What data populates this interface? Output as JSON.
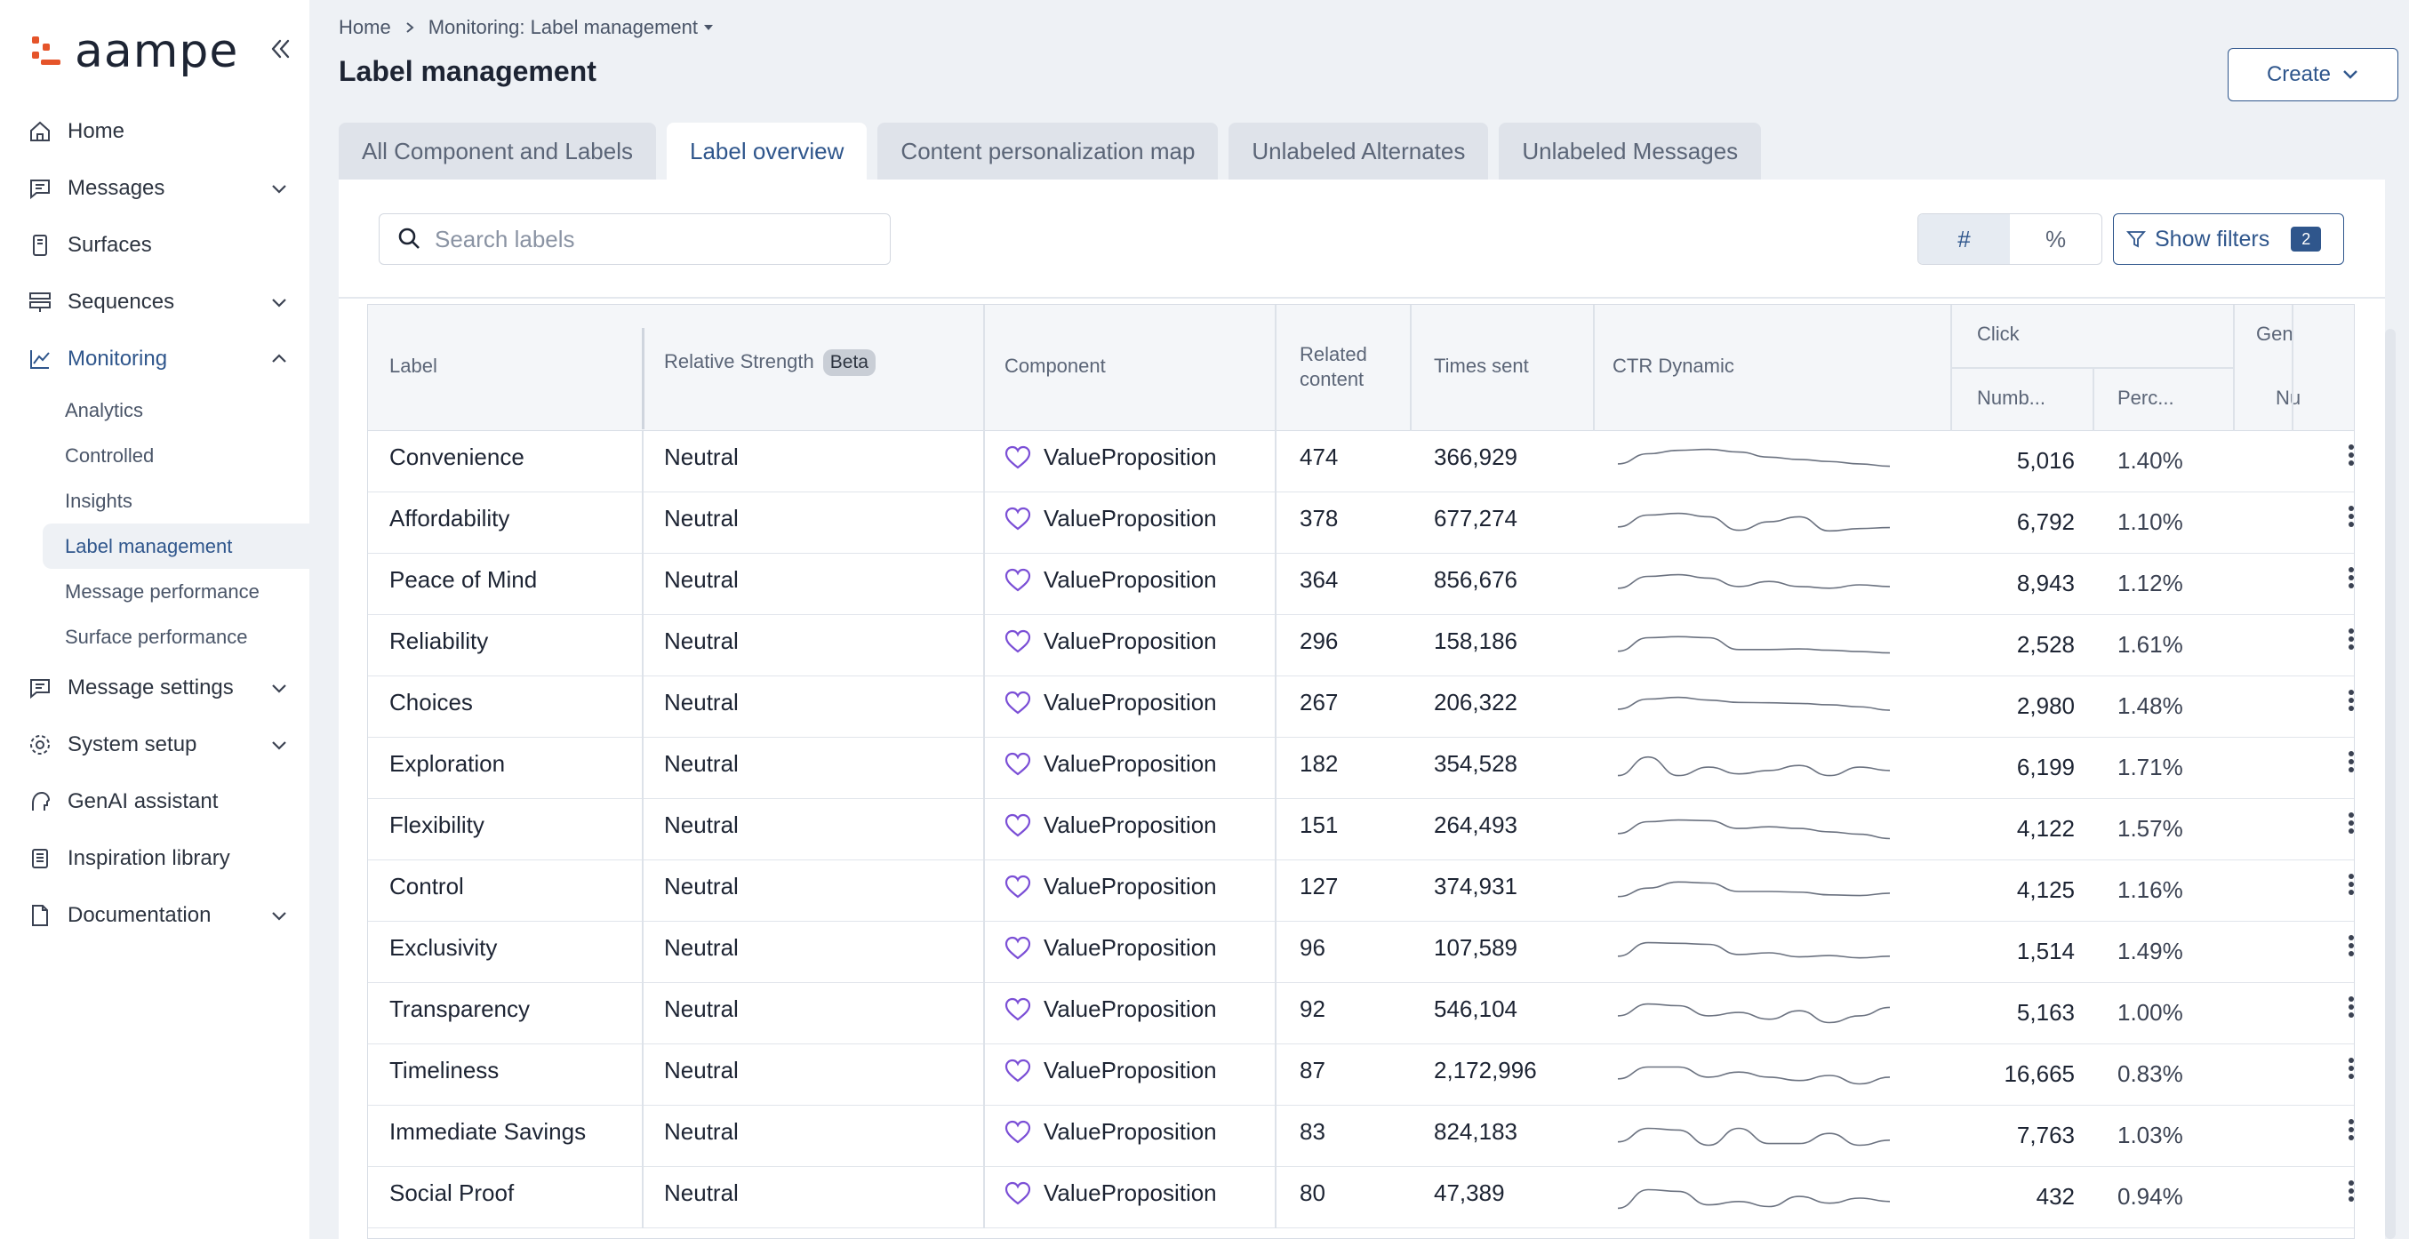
{
  "app": {
    "logo_text": "aampe"
  },
  "sidebar": {
    "items": [
      {
        "label": "Home",
        "icon": "home-icon"
      },
      {
        "label": "Messages",
        "icon": "message-icon",
        "chevron": "down"
      },
      {
        "label": "Surfaces",
        "icon": "surface-icon"
      },
      {
        "label": "Sequences",
        "icon": "sequence-icon",
        "chevron": "down"
      },
      {
        "label": "Monitoring",
        "icon": "chart-line-icon",
        "chevron": "up",
        "active": true
      }
    ],
    "monitoring_sub": [
      "Analytics",
      "Controlled",
      "Insights",
      "Label management",
      "Message performance",
      "Surface performance"
    ],
    "items_after": [
      {
        "label": "Message settings",
        "icon": "message-settings-icon",
        "chevron": "down"
      },
      {
        "label": "System setup",
        "icon": "gear-icon",
        "chevron": "down"
      },
      {
        "label": "GenAI assistant",
        "icon": "genai-icon"
      },
      {
        "label": "Inspiration library",
        "icon": "library-icon"
      },
      {
        "label": "Documentation",
        "icon": "document-icon",
        "chevron": "down"
      }
    ]
  },
  "breadcrumb": {
    "home": "Home",
    "current": "Monitoring: Label management"
  },
  "header": {
    "title": "Label management",
    "create_label": "Create"
  },
  "tabs": [
    "All Component and Labels",
    "Label overview",
    "Content personalization map",
    "Unlabeled Alternates",
    "Unlabeled Messages"
  ],
  "toolbar": {
    "search_placeholder": "Search labels",
    "toggle_count": "#",
    "toggle_percent": "%",
    "filters_label": "Show filters",
    "filters_count": "2"
  },
  "table": {
    "headers": {
      "label": "Label",
      "strength": "Relative Strength",
      "beta": "Beta",
      "component": "Component",
      "related_1": "Related",
      "related_2": "content",
      "times_sent": "Times sent",
      "ctr": "CTR Dynamic",
      "click_group": "Click",
      "click_number": "Numb...",
      "click_percent": "Perc...",
      "gen_group": "Gen",
      "gen_number": "Nu"
    },
    "rows": [
      {
        "label": "Convenience",
        "strength": "Neutral",
        "component": "ValueProposition",
        "related": "474",
        "sent": "366,929",
        "click_n": "5,016",
        "click_p": "1.40%",
        "spark": [
          0.55,
          0.25,
          0.15,
          0.12,
          0.2,
          0.35,
          0.42,
          0.48,
          0.55,
          0.62
        ]
      },
      {
        "label": "Affordability",
        "strength": "Neutral",
        "component": "ValueProposition",
        "related": "378",
        "sent": "677,274",
        "click_n": "6,792",
        "click_p": "1.10%",
        "spark": [
          0.6,
          0.25,
          0.2,
          0.3,
          0.7,
          0.45,
          0.3,
          0.72,
          0.65,
          0.62
        ]
      },
      {
        "label": "Peace of Mind",
        "strength": "Neutral",
        "component": "ValueProposition",
        "related": "364",
        "sent": "856,676",
        "click_n": "8,943",
        "click_p": "1.12%",
        "spark": [
          0.6,
          0.25,
          0.2,
          0.3,
          0.55,
          0.4,
          0.55,
          0.6,
          0.5,
          0.55
        ]
      },
      {
        "label": "Reliability",
        "strength": "Neutral",
        "component": "ValueProposition",
        "related": "296",
        "sent": "158,186",
        "click_n": "2,528",
        "click_p": "1.61%",
        "spark": [
          0.65,
          0.25,
          0.22,
          0.25,
          0.6,
          0.6,
          0.58,
          0.62,
          0.66,
          0.7
        ]
      },
      {
        "label": "Choices",
        "strength": "Neutral",
        "component": "ValueProposition",
        "related": "267",
        "sent": "206,322",
        "click_n": "2,980",
        "click_p": "1.48%",
        "spark": [
          0.55,
          0.25,
          0.2,
          0.28,
          0.35,
          0.36,
          0.38,
          0.42,
          0.48,
          0.58
        ]
      },
      {
        "label": "Exploration",
        "strength": "Neutral",
        "component": "ValueProposition",
        "related": "182",
        "sent": "354,528",
        "click_n": "6,199",
        "click_p": "1.71%",
        "spark": [
          0.7,
          0.15,
          0.7,
          0.45,
          0.65,
          0.55,
          0.4,
          0.7,
          0.45,
          0.55
        ]
      },
      {
        "label": "Flexibility",
        "strength": "Neutral",
        "component": "ValueProposition",
        "related": "151",
        "sent": "264,493",
        "click_n": "4,122",
        "click_p": "1.57%",
        "spark": [
          0.6,
          0.25,
          0.2,
          0.22,
          0.45,
          0.4,
          0.45,
          0.55,
          0.62,
          0.75
        ]
      },
      {
        "label": "Control",
        "strength": "Neutral",
        "component": "ValueProposition",
        "related": "127",
        "sent": "374,931",
        "click_n": "4,125",
        "click_p": "1.16%",
        "spark": [
          0.65,
          0.4,
          0.22,
          0.25,
          0.5,
          0.5,
          0.52,
          0.6,
          0.62,
          0.55
        ]
      },
      {
        "label": "Exclusivity",
        "strength": "Neutral",
        "component": "ValueProposition",
        "related": "96",
        "sent": "107,589",
        "click_n": "1,514",
        "click_p": "1.49%",
        "spark": [
          0.6,
          0.2,
          0.22,
          0.25,
          0.55,
          0.5,
          0.62,
          0.58,
          0.65,
          0.6
        ]
      },
      {
        "label": "Transparency",
        "strength": "Neutral",
        "component": "ValueProposition",
        "related": "92",
        "sent": "546,104",
        "click_n": "5,163",
        "click_p": "1.00%",
        "spark": [
          0.55,
          0.2,
          0.25,
          0.55,
          0.45,
          0.65,
          0.4,
          0.75,
          0.55,
          0.3
        ]
      },
      {
        "label": "Timeliness",
        "strength": "Neutral",
        "component": "ValueProposition",
        "related": "87",
        "sent": "2,172,996",
        "click_n": "16,665",
        "click_p": "0.83%",
        "spark": [
          0.6,
          0.25,
          0.25,
          0.55,
          0.4,
          0.55,
          0.65,
          0.5,
          0.75,
          0.55
        ]
      },
      {
        "label": "Immediate Savings",
        "strength": "Neutral",
        "component": "ValueProposition",
        "related": "83",
        "sent": "824,183",
        "click_n": "7,763",
        "click_p": "1.03%",
        "spark": [
          0.65,
          0.25,
          0.3,
          0.75,
          0.25,
          0.7,
          0.7,
          0.4,
          0.75,
          0.6
        ]
      },
      {
        "label": "Social Proof",
        "strength": "Neutral",
        "component": "ValueProposition",
        "related": "80",
        "sent": "47,389",
        "click_n": "432",
        "click_p": "0.94%",
        "spark": [
          0.8,
          0.25,
          0.3,
          0.7,
          0.6,
          0.75,
          0.45,
          0.65,
          0.5,
          0.6
        ]
      }
    ]
  },
  "colors": {
    "accent": "#2f568c",
    "brand": "#e5542a",
    "heart": "#7b4fd6"
  }
}
